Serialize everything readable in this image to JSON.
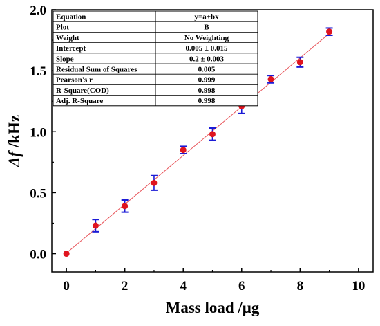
{
  "chart_data": {
    "type": "scatter",
    "x": [
      0,
      1,
      2,
      3,
      4,
      5,
      6,
      7,
      8,
      9
    ],
    "y": [
      0.0,
      0.23,
      0.39,
      0.58,
      0.85,
      0.98,
      1.21,
      1.43,
      1.57,
      1.82
    ],
    "y_err": [
      0.0,
      0.05,
      0.05,
      0.06,
      0.03,
      0.05,
      0.06,
      0.03,
      0.04,
      0.03
    ],
    "fit_line": {
      "x": [
        0,
        9
      ],
      "y": [
        0.005,
        1.805
      ]
    },
    "xlim": [
      -0.5,
      10.5
    ],
    "ylim": [
      -0.15,
      2.0
    ],
    "xticks": [
      "0",
      "2",
      "4",
      "6",
      "8",
      "10"
    ],
    "xtick_values": [
      0,
      2,
      4,
      6,
      8,
      10
    ],
    "yticks": [
      "0.0",
      "0.5",
      "1.0",
      "1.5",
      "2.0"
    ],
    "ytick_values": [
      0.0,
      0.5,
      1.0,
      1.5,
      2.0
    ],
    "xlabel": "Mass load /μg",
    "ylabel_symbol": "Δf",
    "ylabel_unit": " /kHz",
    "grid": false,
    "colors": {
      "marker": "#e0141e",
      "errorbar": "#1b1bd6",
      "fit": "#e8545a",
      "axis": "#000000"
    },
    "fit_table": [
      {
        "label": "Equation",
        "value": "y=a+bx"
      },
      {
        "label": "Plot",
        "value": "B"
      },
      {
        "label": "Weight",
        "value": "No Weighting"
      },
      {
        "label": "Intercept",
        "value": "0.005 ± 0.015"
      },
      {
        "label": "Slope",
        "value": "0.2 ± 0.003"
      },
      {
        "label": "Residual Sum of Squares",
        "value": "0.005"
      },
      {
        "label": "Pearson's r",
        "value": "0.999"
      },
      {
        "label": "R-Square(COD)",
        "value": "0.998"
      },
      {
        "label": "Adj. R-Square",
        "value": "0.998"
      }
    ]
  }
}
